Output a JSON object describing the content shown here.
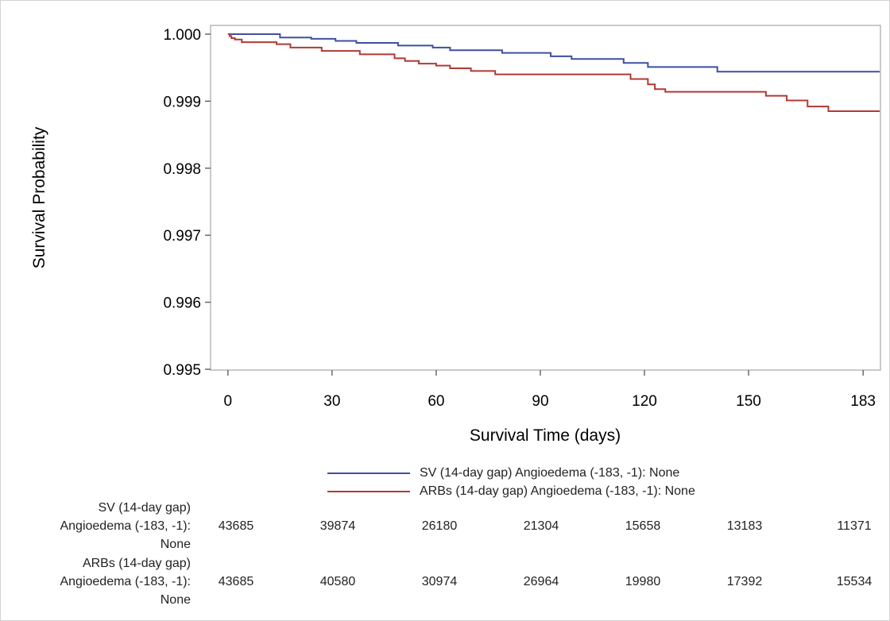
{
  "chart_data": {
    "type": "line",
    "xlabel": "Survival Time (days)",
    "ylabel": "Survival Probability",
    "xlim": [
      -5,
      188
    ],
    "ylim": [
      0.995,
      1.0
    ],
    "xticks": [
      0,
      30,
      60,
      90,
      120,
      150,
      183
    ],
    "x_tick_labels": [
      "0",
      "30",
      "60",
      "90",
      "120",
      "150",
      "183"
    ],
    "yticks": [
      0.995,
      0.996,
      0.997,
      0.998,
      0.999,
      1.0
    ],
    "y_tick_labels": [
      "0.995",
      "0.996",
      "0.997",
      "0.998",
      "0.999",
      "1.000"
    ],
    "grid": false,
    "legend_position": "bottom",
    "series": [
      {
        "name": "SV (14-day gap) Angioedema (-183, -1): None",
        "color": "#3f4fa0",
        "step_points": [
          [
            0,
            1.0
          ],
          [
            15,
            0.99995
          ],
          [
            24,
            0.99993
          ],
          [
            31,
            0.9999
          ],
          [
            37,
            0.99987
          ],
          [
            49,
            0.99983
          ],
          [
            59,
            0.9998
          ],
          [
            64,
            0.99976
          ],
          [
            79,
            0.99972
          ],
          [
            93,
            0.99967
          ],
          [
            99,
            0.99963
          ],
          [
            114,
            0.99957
          ],
          [
            121,
            0.99951
          ],
          [
            141,
            0.99944
          ],
          [
            190,
            0.99944
          ]
        ]
      },
      {
        "name": "ARBs (14-day gap) Angioedema (-183, -1): None",
        "color": "#b03a36",
        "step_points": [
          [
            0,
            1.0
          ],
          [
            0.5,
            0.99997
          ],
          [
            1,
            0.99994
          ],
          [
            2,
            0.99992
          ],
          [
            4,
            0.99988
          ],
          [
            14,
            0.99985
          ],
          [
            18,
            0.9998
          ],
          [
            27,
            0.99975
          ],
          [
            38,
            0.9997
          ],
          [
            48,
            0.99964
          ],
          [
            51,
            0.9996
          ],
          [
            55,
            0.99956
          ],
          [
            60,
            0.99953
          ],
          [
            64,
            0.99949
          ],
          [
            70,
            0.99945
          ],
          [
            77,
            0.9994
          ],
          [
            107,
            0.9994
          ],
          [
            116,
            0.99933
          ],
          [
            121,
            0.99925
          ],
          [
            123,
            0.99918
          ],
          [
            126,
            0.99914
          ],
          [
            155,
            0.99908
          ],
          [
            161,
            0.99901
          ],
          [
            167,
            0.99892
          ],
          [
            173,
            0.99885
          ],
          [
            190,
            0.99885
          ]
        ]
      }
    ]
  },
  "risk_table": {
    "rows": [
      {
        "label_lines": [
          "SV (14-day gap)",
          "Angioedema (-183, -1):",
          "None"
        ],
        "counts": [
          "43685",
          "39874",
          "26180",
          "21304",
          "15658",
          "13183",
          "11371"
        ]
      },
      {
        "label_lines": [
          "ARBs (14-day gap)",
          "Angioedema (-183, -1):",
          "None"
        ],
        "counts": [
          "43685",
          "40580",
          "30974",
          "26964",
          "19980",
          "17392",
          "15534"
        ]
      }
    ]
  }
}
